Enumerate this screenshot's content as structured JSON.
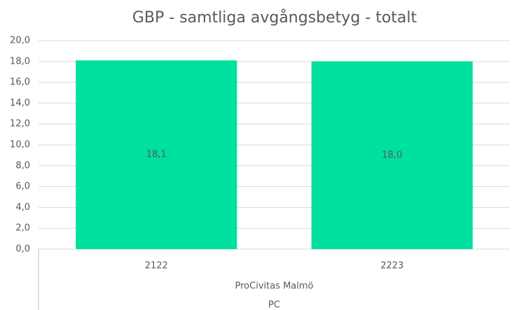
{
  "chart_data": {
    "type": "bar",
    "title": "GBP - samtliga avgångsbetyg - totalt",
    "categories": [
      "2122",
      "2223"
    ],
    "category_groups": [
      "ProCivitas Malmö",
      "PC"
    ],
    "values": [
      18.1,
      18.0
    ],
    "value_labels": [
      "18,1",
      "18,0"
    ],
    "color": "#00e09e",
    "ylim": [
      0,
      20
    ],
    "yticks": [
      {
        "value": 0,
        "label": "0,0"
      },
      {
        "value": 2,
        "label": "2,0"
      },
      {
        "value": 4,
        "label": "4,0"
      },
      {
        "value": 6,
        "label": "6,0"
      },
      {
        "value": 8,
        "label": "8,0"
      },
      {
        "value": 10,
        "label": "10,0"
      },
      {
        "value": 12,
        "label": "12,0"
      },
      {
        "value": 14,
        "label": "14,0"
      },
      {
        "value": 16,
        "label": "16,0"
      },
      {
        "value": 18,
        "label": "18,0"
      },
      {
        "value": 20,
        "label": "20,0"
      }
    ],
    "grid": true
  }
}
